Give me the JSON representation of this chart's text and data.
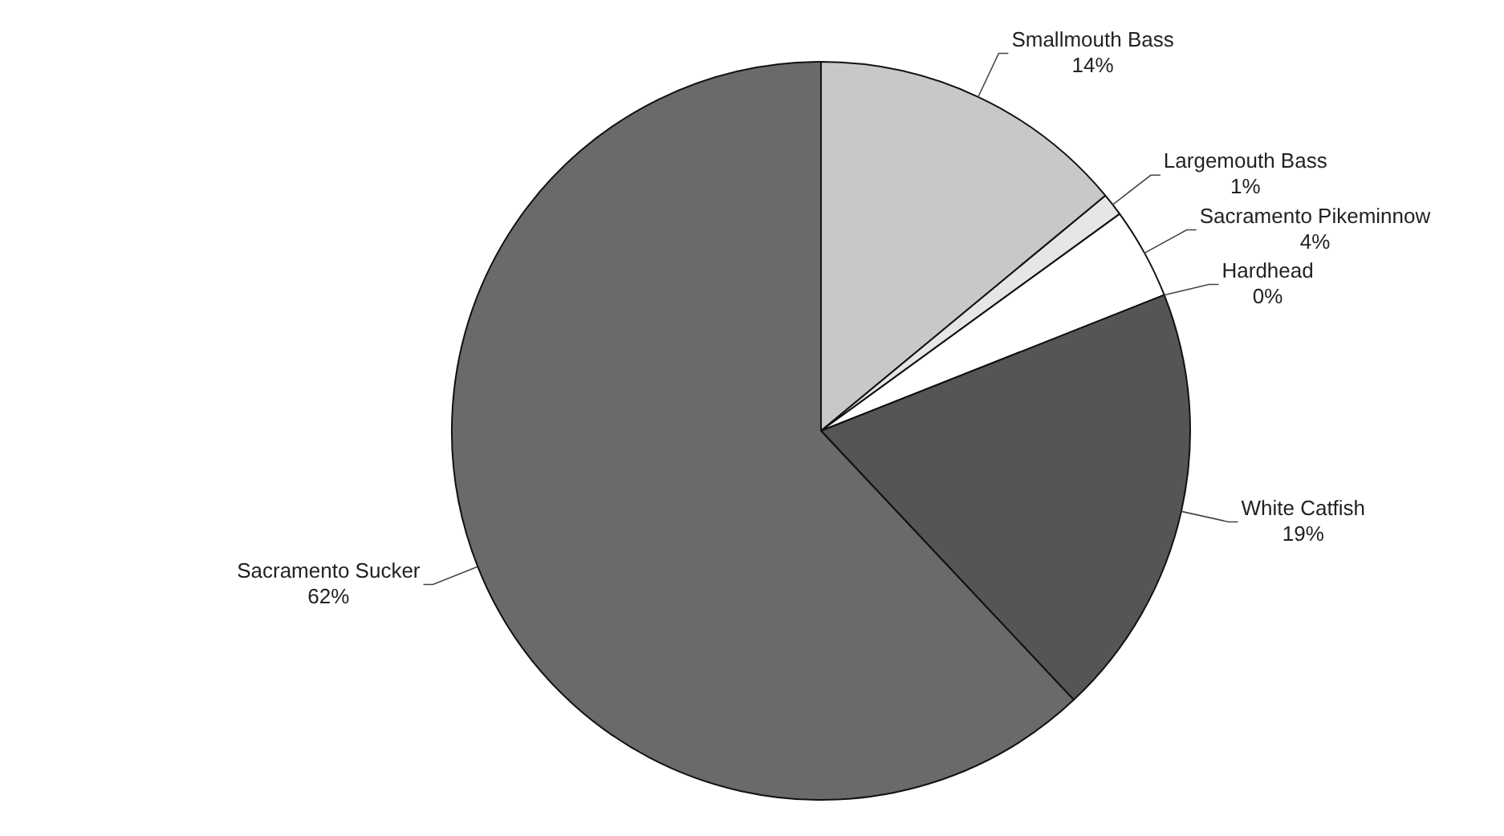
{
  "chart_data": {
    "type": "pie",
    "categories": [
      "Smallmouth Bass",
      "Largemouth Bass",
      "Sacramento Pikeminnow",
      "Hardhead",
      "White Catfish",
      "Sacramento Sucker"
    ],
    "values": [
      14,
      1,
      4,
      0,
      19,
      62
    ],
    "colors": [
      "#c8c8c8",
      "#e6e6e6",
      "#ffffff",
      "#8a8a8a",
      "#555555",
      "#6a6a6a"
    ],
    "value_labels": [
      "14%",
      "1%",
      "4%",
      "0%",
      "19%",
      "62%"
    ],
    "legend": false
  }
}
